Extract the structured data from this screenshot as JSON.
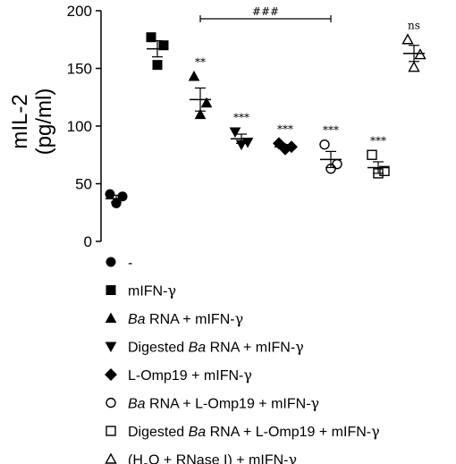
{
  "chart_data": {
    "type": "scatter",
    "title": "",
    "xlabel": "",
    "ylabel_lines": [
      "mIL-2",
      "(pg/ml)"
    ],
    "ylim": [
      0,
      200
    ],
    "yticks": [
      0,
      50,
      100,
      150,
      200
    ],
    "grid": false,
    "legend_position": "bottom",
    "groups": [
      {
        "name": "-",
        "marker": "circle",
        "filled": true,
        "points": [
          41,
          39,
          33
        ],
        "mean": 37,
        "error": 3,
        "significance": ""
      },
      {
        "name": "mIFN-γ",
        "marker": "square",
        "filled": true,
        "points": [
          177,
          170,
          153
        ],
        "mean": 167,
        "error": 7,
        "significance": ""
      },
      {
        "name": "Ba RNA + mIFN-γ",
        "marker": "triangle-up",
        "filled": true,
        "points": [
          143,
          120,
          110
        ],
        "mean": 123,
        "error": 10,
        "significance": "**"
      },
      {
        "name": "Digested Ba RNA + mIFN-γ",
        "marker": "triangle-down",
        "filled": true,
        "points": [
          95,
          86,
          84
        ],
        "mean": 89,
        "error": 4,
        "significance": "***"
      },
      {
        "name": "L-Omp19 + mIFN-γ",
        "marker": "diamond",
        "filled": true,
        "points": [
          85,
          82,
          80
        ],
        "mean": 82,
        "error": 2,
        "significance": "***"
      },
      {
        "name": "Ba RNA + L-Omp19 + mIFN-γ",
        "marker": "circle",
        "filled": false,
        "points": [
          84,
          67,
          63
        ],
        "mean": 71,
        "error": 7,
        "significance": "***"
      },
      {
        "name": "Digested Ba RNA + L-Omp19 + mIFN-γ",
        "marker": "square",
        "filled": false,
        "points": [
          75,
          61,
          59
        ],
        "mean": 64,
        "error": 5,
        "significance": "***"
      },
      {
        "name": "(H2O + RNase I) + mIFN-γ",
        "marker": "triangle-up",
        "filled": false,
        "points": [
          175,
          162,
          151
        ],
        "mean": 163,
        "error": 7,
        "significance": "ns"
      }
    ],
    "bracket": {
      "from_group": 2,
      "to_group": 5,
      "y": 193,
      "label": "###"
    }
  },
  "legend": {
    "items": [
      {
        "marker": "circle",
        "filled": true,
        "parts": [
          {
            "text": "-"
          }
        ]
      },
      {
        "marker": "square",
        "filled": true,
        "parts": [
          {
            "text": "mIFN-"
          },
          {
            "text": "γ",
            "serif": true
          }
        ]
      },
      {
        "marker": "triangle-up",
        "filled": true,
        "parts": [
          {
            "text": "Ba",
            "italic": true
          },
          {
            "text": " RNA + mIFN-"
          },
          {
            "text": "γ",
            "serif": true
          }
        ]
      },
      {
        "marker": "triangle-down",
        "filled": true,
        "parts": [
          {
            "text": "Digested "
          },
          {
            "text": "Ba",
            "italic": true
          },
          {
            "text": " RNA + mIFN-"
          },
          {
            "text": "γ",
            "serif": true
          }
        ]
      },
      {
        "marker": "diamond",
        "filled": true,
        "parts": [
          {
            "text": "L-Omp19 + mIFN-"
          },
          {
            "text": "γ",
            "serif": true
          }
        ]
      },
      {
        "marker": "circle",
        "filled": false,
        "parts": [
          {
            "text": "Ba",
            "italic": true
          },
          {
            "text": " RNA + L-Omp19 + mIFN-"
          },
          {
            "text": "γ",
            "serif": true
          }
        ]
      },
      {
        "marker": "square",
        "filled": false,
        "parts": [
          {
            "text": "Digested "
          },
          {
            "text": "Ba",
            "italic": true
          },
          {
            "text": " RNA + L-Omp19 + mIFN-"
          },
          {
            "text": "γ",
            "serif": true
          }
        ]
      },
      {
        "marker": "triangle-up",
        "filled": false,
        "parts": [
          {
            "text": "(H"
          },
          {
            "text": "2",
            "sub": true
          },
          {
            "text": "O + RNase I) + mIFN-"
          },
          {
            "text": "γ",
            "serif": true
          }
        ]
      }
    ]
  }
}
